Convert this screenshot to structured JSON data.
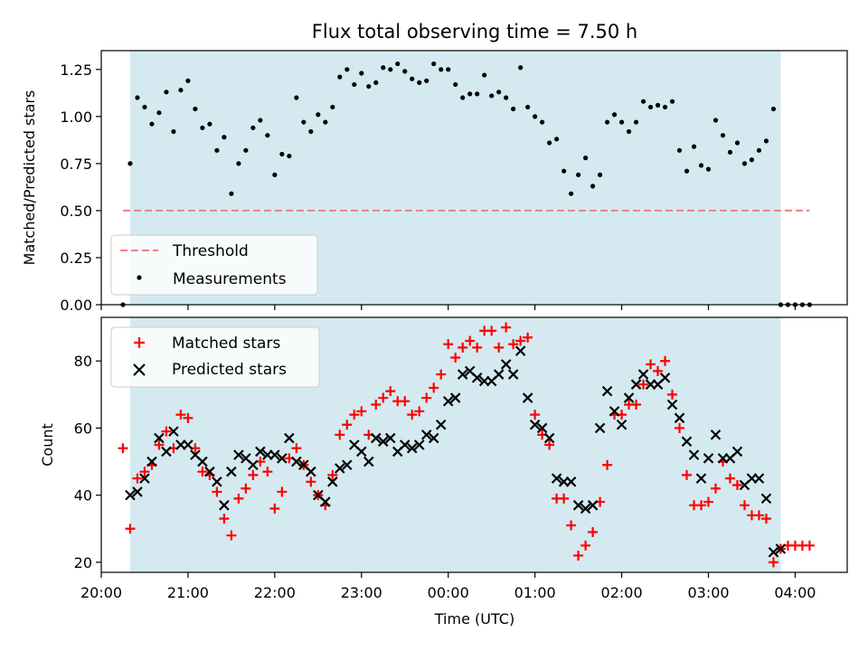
{
  "colors": {
    "observing_window": "#d4eaf0",
    "threshold": "#f08080",
    "measurements": "#000000",
    "matched": "#ff0000",
    "predicted": "#000000"
  },
  "icons": {
    "measurement_marker": "filled-dot",
    "matched_marker": "plus-sign",
    "predicted_marker": "x-cross"
  },
  "chart_data": [
    {
      "type": "scatter",
      "title": "Flux total observing time = 7.50 h",
      "xlabel": "",
      "ylabel": "Matched/Predicted stars",
      "xlim": [
        "20:00",
        "04:36"
      ],
      "ylim": [
        0,
        1.35
      ],
      "yticks": [
        "0.00",
        "0.25",
        "0.50",
        "0.75",
        "1.00",
        "1.25"
      ],
      "observing_window": [
        "20:20",
        "03:50"
      ],
      "threshold": {
        "name": "Threshold",
        "value": 0.5,
        "x_range": [
          "20:15",
          "04:10"
        ]
      },
      "legend": "bottom-left",
      "series": [
        {
          "name": "Measurements",
          "x": [
            "20:15",
            "20:20",
            "20:25",
            "20:30",
            "20:35",
            "20:40",
            "20:45",
            "20:50",
            "20:55",
            "21:00",
            "21:05",
            "21:10",
            "21:15",
            "21:20",
            "21:25",
            "21:30",
            "21:35",
            "21:40",
            "21:45",
            "21:50",
            "21:55",
            "22:00",
            "22:05",
            "22:10",
            "22:15",
            "22:20",
            "22:25",
            "22:30",
            "22:35",
            "22:40",
            "22:45",
            "22:50",
            "22:55",
            "23:00",
            "23:05",
            "23:10",
            "23:15",
            "23:20",
            "23:25",
            "23:30",
            "23:35",
            "23:40",
            "23:45",
            "23:50",
            "23:55",
            "00:00",
            "00:05",
            "00:10",
            "00:15",
            "00:20",
            "00:25",
            "00:30",
            "00:35",
            "00:40",
            "00:45",
            "00:50",
            "00:55",
            "01:00",
            "01:05",
            "01:10",
            "01:15",
            "01:20",
            "01:25",
            "01:30",
            "01:35",
            "01:40",
            "01:45",
            "01:50",
            "01:55",
            "02:00",
            "02:05",
            "02:10",
            "02:15",
            "02:20",
            "02:25",
            "02:30",
            "02:35",
            "02:40",
            "02:45",
            "02:50",
            "02:55",
            "03:00",
            "03:05",
            "03:10",
            "03:15",
            "03:20",
            "03:25",
            "03:30",
            "03:35",
            "03:40",
            "03:45",
            "03:50",
            "03:55",
            "04:00",
            "04:05",
            "04:10"
          ],
          "y": [
            0.0,
            0.75,
            1.1,
            1.05,
            0.96,
            1.02,
            1.13,
            0.92,
            1.14,
            1.19,
            1.04,
            0.94,
            0.96,
            0.82,
            0.89,
            0.59,
            0.75,
            0.82,
            0.94,
            0.98,
            0.9,
            0.69,
            0.8,
            0.79,
            1.1,
            0.97,
            0.92,
            1.01,
            0.97,
            1.05,
            1.21,
            1.25,
            1.17,
            1.23,
            1.16,
            1.18,
            1.26,
            1.25,
            1.28,
            1.24,
            1.2,
            1.18,
            1.19,
            1.28,
            1.25,
            1.25,
            1.17,
            1.1,
            1.12,
            1.12,
            1.22,
            1.11,
            1.13,
            1.1,
            1.04,
            1.26,
            1.05,
            1.0,
            0.97,
            0.86,
            0.88,
            0.71,
            0.59,
            0.69,
            0.78,
            0.63,
            0.69,
            0.97,
            1.01,
            0.97,
            0.92,
            0.97,
            1.08,
            1.05,
            1.06,
            1.05,
            1.08,
            0.82,
            0.71,
            0.84,
            0.74,
            0.72,
            0.98,
            0.9,
            0.81,
            0.86,
            0.75,
            0.77,
            0.82,
            0.87,
            1.04,
            0.0,
            0.0,
            0.0,
            0.0,
            0.0
          ]
        }
      ]
    },
    {
      "type": "scatter",
      "title": "",
      "xlabel": "Time (UTC)",
      "ylabel": "Count",
      "xlim": [
        "20:00",
        "04:36"
      ],
      "ylim": [
        17,
        93
      ],
      "xticks": [
        "20:00",
        "21:00",
        "22:00",
        "23:00",
        "00:00",
        "01:00",
        "02:00",
        "03:00",
        "04:00"
      ],
      "yticks": [
        "20",
        "40",
        "60",
        "80"
      ],
      "observing_window": [
        "20:20",
        "03:50"
      ],
      "legend": "top-left",
      "series": [
        {
          "name": "Matched stars",
          "x": [
            "20:15",
            "20:20",
            "20:25",
            "20:30",
            "20:35",
            "20:40",
            "20:45",
            "20:50",
            "20:55",
            "21:00",
            "21:05",
            "21:10",
            "21:15",
            "21:20",
            "21:25",
            "21:30",
            "21:35",
            "21:40",
            "21:45",
            "21:50",
            "21:55",
            "22:00",
            "22:05",
            "22:10",
            "22:15",
            "22:20",
            "22:25",
            "22:30",
            "22:35",
            "22:40",
            "22:45",
            "22:50",
            "22:55",
            "23:00",
            "23:05",
            "23:10",
            "23:15",
            "23:20",
            "23:25",
            "23:30",
            "23:35",
            "23:40",
            "23:45",
            "23:50",
            "23:55",
            "00:00",
            "00:05",
            "00:10",
            "00:15",
            "00:20",
            "00:25",
            "00:30",
            "00:35",
            "00:40",
            "00:45",
            "00:50",
            "00:55",
            "01:00",
            "01:05",
            "01:10",
            "01:15",
            "01:20",
            "01:25",
            "01:30",
            "01:35",
            "01:40",
            "01:45",
            "01:50",
            "01:55",
            "02:00",
            "02:05",
            "02:10",
            "02:15",
            "02:20",
            "02:25",
            "02:30",
            "02:35",
            "02:40",
            "02:45",
            "02:50",
            "02:55",
            "03:00",
            "03:05",
            "03:10",
            "03:15",
            "03:20",
            "03:25",
            "03:30",
            "03:35",
            "03:40",
            "03:45",
            "03:50",
            "03:55",
            "04:00",
            "04:05",
            "04:10"
          ],
          "y": [
            54,
            30,
            45,
            47,
            49,
            55,
            59,
            54,
            64,
            63,
            54,
            47,
            46,
            41,
            33,
            28,
            39,
            42,
            46,
            50,
            47,
            36,
            41,
            51,
            54,
            49,
            44,
            40,
            37,
            46,
            58,
            61,
            64,
            65,
            58,
            67,
            69,
            71,
            68,
            68,
            64,
            65,
            69,
            72,
            76,
            85,
            81,
            84,
            86,
            84,
            89,
            89,
            84,
            90,
            85,
            86,
            87,
            64,
            58,
            55,
            39,
            39,
            31,
            22,
            25,
            29,
            38,
            49,
            64,
            64,
            67,
            67,
            73,
            79,
            77,
            80,
            70,
            60,
            46,
            37,
            37,
            38,
            42,
            50,
            45,
            43,
            37,
            34,
            34,
            33,
            20,
            24,
            25,
            25,
            25,
            25
          ]
        },
        {
          "name": "Predicted stars",
          "x": [
            "20:20",
            "20:25",
            "20:30",
            "20:35",
            "20:40",
            "20:45",
            "20:50",
            "20:55",
            "21:00",
            "21:05",
            "21:10",
            "21:15",
            "21:20",
            "21:25",
            "21:30",
            "21:35",
            "21:40",
            "21:45",
            "21:50",
            "21:55",
            "22:00",
            "22:05",
            "22:10",
            "22:15",
            "22:20",
            "22:25",
            "22:30",
            "22:35",
            "22:40",
            "22:45",
            "22:50",
            "22:55",
            "23:00",
            "23:05",
            "23:10",
            "23:15",
            "23:20",
            "23:25",
            "23:30",
            "23:35",
            "23:40",
            "23:45",
            "23:50",
            "23:55",
            "00:00",
            "00:05",
            "00:10",
            "00:15",
            "00:20",
            "00:25",
            "00:30",
            "00:35",
            "00:40",
            "00:45",
            "00:50",
            "00:55",
            "01:00",
            "01:05",
            "01:10",
            "01:15",
            "01:20",
            "01:25",
            "01:30",
            "01:35",
            "01:40",
            "01:45",
            "01:50",
            "01:55",
            "02:00",
            "02:05",
            "02:10",
            "02:15",
            "02:20",
            "02:25",
            "02:30",
            "02:35",
            "02:40",
            "02:45",
            "02:50",
            "02:55",
            "03:00",
            "03:05",
            "03:10",
            "03:15",
            "03:20",
            "03:25",
            "03:30",
            "03:35",
            "03:40",
            "03:45",
            "03:50"
          ],
          "y": [
            40,
            41,
            45,
            50,
            57,
            53,
            59,
            55,
            55,
            52,
            50,
            47,
            44,
            37,
            47,
            52,
            51,
            49,
            53,
            52,
            52,
            51,
            57,
            50,
            49,
            47,
            40,
            38,
            44,
            48,
            49,
            55,
            53,
            50,
            57,
            56,
            57,
            53,
            55,
            54,
            55,
            58,
            57,
            61,
            68,
            69,
            76,
            77,
            75,
            74,
            74,
            76,
            79,
            76,
            83,
            69,
            61,
            60,
            57,
            45,
            44,
            44,
            37,
            36,
            37,
            60,
            71,
            65,
            61,
            69,
            73,
            76,
            73,
            73,
            75,
            67,
            63,
            56,
            52,
            45,
            51,
            58,
            51,
            51,
            53,
            43,
            45,
            45,
            39,
            23,
            24
          ]
        }
      ]
    }
  ]
}
